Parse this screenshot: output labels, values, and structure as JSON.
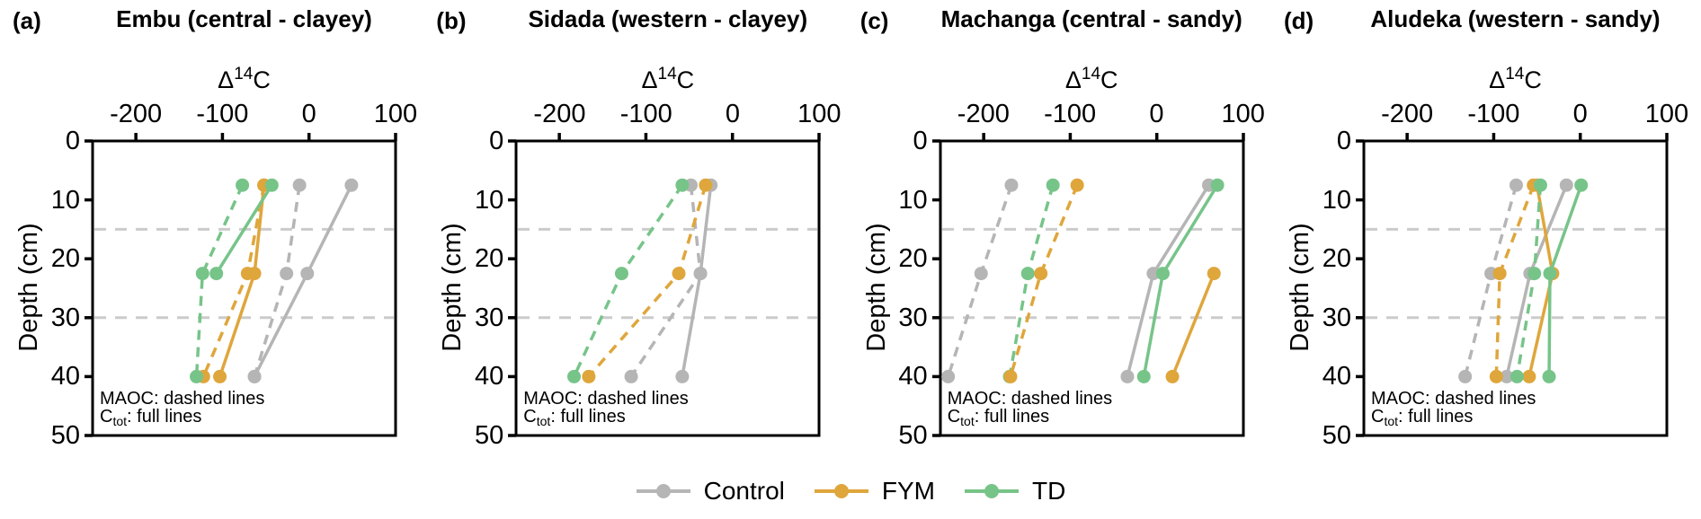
{
  "figure": {
    "axes": {
      "x_label_delta": "Δ",
      "x_label_sup": "14",
      "x_label_base": "C",
      "y_label": "Depth (cm)"
    },
    "annotation": {
      "maoc_line": "MAOC: dashed lines",
      "ctot_prefix": "C",
      "ctot_sub": "tot",
      "ctot_suffix": ": full lines"
    }
  },
  "colors": {
    "control": "#b5b5b5",
    "fym": "#dfa63c",
    "td": "#77c489",
    "reference_line": "#cbcbcb",
    "axis": "#000000"
  },
  "legend": {
    "items": [
      {
        "label": "Control",
        "color_key": "control"
      },
      {
        "label": "FYM",
        "color_key": "fym"
      },
      {
        "label": "TD",
        "color_key": "td"
      }
    ]
  },
  "chart_data": [
    {
      "type": "line",
      "panel_label": "(a)",
      "title": "Embu (central - clayey)",
      "x_label": "Δ14C",
      "y_label": "Depth (cm)",
      "x_ticks": [
        -200,
        -100,
        0,
        100
      ],
      "y_ticks": [
        0,
        10,
        20,
        30,
        40,
        50
      ],
      "x_range": [
        -250,
        100
      ],
      "y_range": [
        0,
        50
      ],
      "reference_depths": [
        15,
        30
      ],
      "series": [
        {
          "treatment": "Control",
          "fraction": "MAOC",
          "line": "dashed",
          "color_key": "control",
          "points": [
            [
              -11,
              7.5
            ],
            [
              -26,
              22.5
            ],
            [
              -63,
              40
            ]
          ]
        },
        {
          "treatment": "Control",
          "fraction": "Ctot",
          "line": "solid",
          "color_key": "control",
          "points": [
            [
              49,
              7.5
            ],
            [
              -2,
              22.5
            ],
            [
              -63,
              40
            ]
          ]
        },
        {
          "treatment": "FYM",
          "fraction": "MAOC",
          "line": "dashed",
          "color_key": "fym",
          "points": [
            [
              -52,
              7.5
            ],
            [
              -71,
              22.5
            ],
            [
              -122,
              40
            ]
          ]
        },
        {
          "treatment": "FYM",
          "fraction": "Ctot",
          "line": "solid",
          "color_key": "fym",
          "points": [
            [
              -52,
              7.5
            ],
            [
              -63,
              22.5
            ],
            [
              -103,
              40
            ]
          ]
        },
        {
          "treatment": "TD",
          "fraction": "MAOC",
          "line": "dashed",
          "color_key": "td",
          "points": [
            [
              -77,
              7.5
            ],
            [
              -123,
              22.5
            ],
            [
              -130,
              40
            ]
          ]
        },
        {
          "treatment": "TD",
          "fraction": "Ctot",
          "line": "solid",
          "color_key": "td",
          "points": [
            [
              -43,
              7.5
            ],
            [
              -107,
              22.5
            ]
          ]
        }
      ]
    },
    {
      "type": "line",
      "panel_label": "(b)",
      "title": "Sidada (western - clayey)",
      "x_label": "Δ14C",
      "y_label": "Depth (cm)",
      "x_ticks": [
        -200,
        -100,
        0,
        100
      ],
      "y_ticks": [
        0,
        10,
        20,
        30,
        40,
        50
      ],
      "x_range": [
        -250,
        100
      ],
      "y_range": [
        0,
        50
      ],
      "reference_depths": [
        15,
        30
      ],
      "series": [
        {
          "treatment": "Control",
          "fraction": "MAOC",
          "line": "dashed",
          "color_key": "control",
          "points": [
            [
              -48,
              7.5
            ],
            [
              -37,
              22.5
            ],
            [
              -117,
              40
            ]
          ]
        },
        {
          "treatment": "Control",
          "fraction": "Ctot",
          "line": "solid",
          "color_key": "control",
          "points": [
            [
              -25,
              7.5
            ],
            [
              -37,
              22.5
            ],
            [
              -58,
              40
            ]
          ]
        },
        {
          "treatment": "FYM",
          "fraction": "MAOC",
          "line": "dashed",
          "color_key": "fym",
          "points": [
            [
              -31,
              7.5
            ],
            [
              -62,
              22.5
            ],
            [
              -166,
              40
            ]
          ]
        },
        {
          "treatment": "TD",
          "fraction": "MAOC",
          "line": "dashed",
          "color_key": "td",
          "points": [
            [
              -58,
              7.5
            ],
            [
              -128,
              22.5
            ],
            [
              -183,
              40
            ]
          ]
        }
      ]
    },
    {
      "type": "line",
      "panel_label": "(c)",
      "title": "Machanga (central - sandy)",
      "x_label": "Δ14C",
      "y_label": "Depth (cm)",
      "x_ticks": [
        -200,
        -100,
        0,
        100
      ],
      "y_ticks": [
        0,
        10,
        20,
        30,
        40,
        50
      ],
      "x_range": [
        -250,
        100
      ],
      "y_range": [
        0,
        50
      ],
      "reference_depths": [
        15,
        30
      ],
      "series": [
        {
          "treatment": "Control",
          "fraction": "MAOC",
          "line": "dashed",
          "color_key": "control",
          "points": [
            [
              -168,
              7.5
            ],
            [
              -203,
              22.5
            ],
            [
              -241,
              40
            ]
          ]
        },
        {
          "treatment": "Control",
          "fraction": "Ctot",
          "line": "solid",
          "color_key": "control",
          "points": [
            [
              60,
              7.5
            ],
            [
              -4,
              22.5
            ],
            [
              -34,
              40
            ]
          ]
        },
        {
          "treatment": "TD",
          "fraction": "MAOC",
          "line": "dashed",
          "color_key": "td",
          "points": [
            [
              -120,
              7.5
            ],
            [
              -149,
              22.5
            ],
            [
              -170,
              40
            ]
          ]
        },
        {
          "treatment": "TD",
          "fraction": "Ctot",
          "line": "solid",
          "color_key": "td",
          "points": [
            [
              70,
              7.5
            ],
            [
              7,
              22.5
            ],
            [
              -15,
              40
            ]
          ]
        },
        {
          "treatment": "FYM",
          "fraction": "MAOC",
          "line": "dashed",
          "color_key": "fym",
          "points": [
            [
              -92,
              7.5
            ],
            [
              -134,
              22.5
            ],
            [
              -169,
              40
            ]
          ]
        },
        {
          "treatment": "FYM",
          "fraction": "Ctot",
          "line": "solid",
          "color_key": "fym",
          "points": [
            [
              66,
              22.5
            ],
            [
              18,
              40
            ]
          ]
        }
      ]
    },
    {
      "type": "line",
      "panel_label": "(d)",
      "title": "Aludeka (western - sandy)",
      "x_label": "Δ14C",
      "y_label": "Depth (cm)",
      "x_ticks": [
        -200,
        -100,
        0,
        100
      ],
      "y_ticks": [
        0,
        10,
        20,
        30,
        40,
        50
      ],
      "x_range": [
        -250,
        100
      ],
      "y_range": [
        0,
        50
      ],
      "reference_depths": [
        15,
        30
      ],
      "series": [
        {
          "treatment": "Control",
          "fraction": "MAOC",
          "line": "dashed",
          "color_key": "control",
          "points": [
            [
              -74,
              7.5
            ],
            [
              -103,
              22.5
            ],
            [
              -133,
              40
            ]
          ]
        },
        {
          "treatment": "Control",
          "fraction": "Ctot",
          "line": "solid",
          "color_key": "control",
          "points": [
            [
              -16,
              7.5
            ],
            [
              -58,
              22.5
            ],
            [
              -85,
              40
            ]
          ]
        },
        {
          "treatment": "FYM",
          "fraction": "MAOC",
          "line": "dashed",
          "color_key": "fym",
          "points": [
            [
              -54,
              7.5
            ],
            [
              -93,
              22.5
            ],
            [
              -97,
              40
            ]
          ]
        },
        {
          "treatment": "FYM",
          "fraction": "Ctot",
          "line": "solid",
          "color_key": "fym",
          "points": [
            [
              -50,
              7.5
            ],
            [
              -32,
              22.5
            ],
            [
              -59,
              40
            ]
          ]
        },
        {
          "treatment": "TD",
          "fraction": "MAOC",
          "line": "dashed",
          "color_key": "td",
          "points": [
            [
              -46,
              7.5
            ],
            [
              -53,
              22.5
            ],
            [
              -73,
              40
            ]
          ]
        },
        {
          "treatment": "TD",
          "fraction": "Ctot",
          "line": "solid",
          "color_key": "td",
          "points": [
            [
              1,
              7.5
            ],
            [
              -35,
              22.5
            ],
            [
              -36,
              40
            ]
          ]
        }
      ]
    }
  ]
}
